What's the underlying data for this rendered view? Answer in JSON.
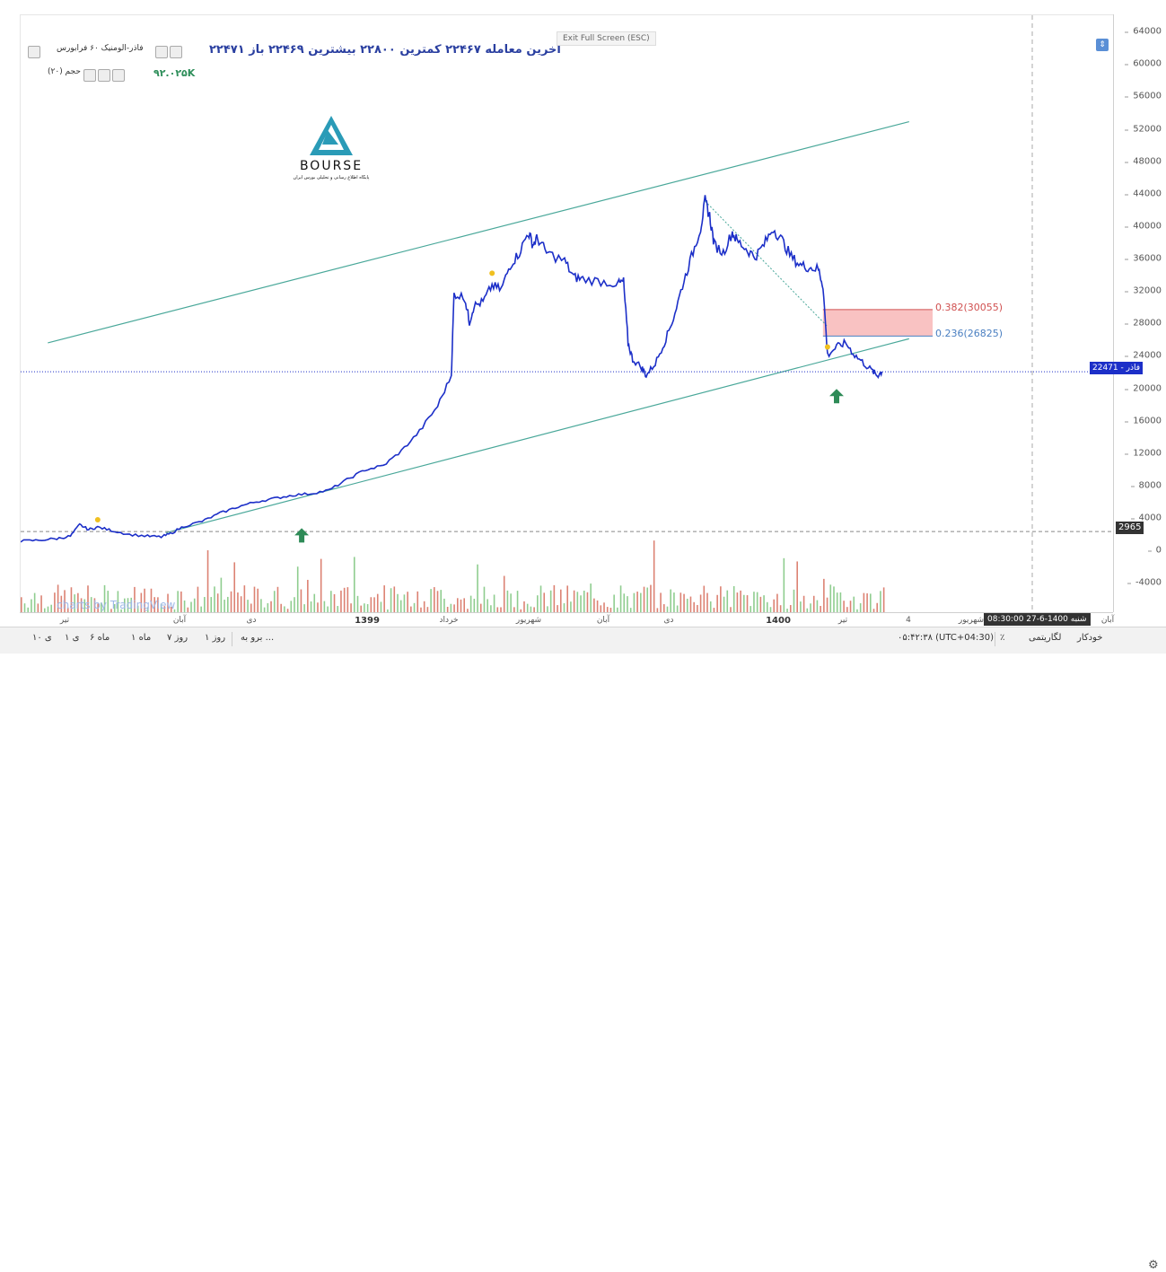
{
  "legend": {
    "title": "فاذر-الومنیک ۶۰ فرابورس",
    "ohlc_text": "۲۲۴۷۱ آخرین معامله ۲۲۴۶۷ کمترین ۲۲۸۰۰ بیشترین ۲۲۴۶۹ باز",
    "volume_label": "حجم (۲۰)",
    "volume_value": "۹۲.۰۲۵K"
  },
  "exit_fullscreen": "Exit Full Screen (ESC)",
  "logo": {
    "text": "BOURSE",
    "subtitle": "پایگاه اطلاع رسانی و تحلیلی بورس ایران"
  },
  "watermark": "charts by TradingView",
  "price_axis": {
    "ticks": [
      "64000",
      "60000",
      "56000",
      "52000",
      "48000",
      "44000",
      "40000",
      "36000",
      "32000",
      "28000",
      "24000",
      "20000",
      "16000",
      "12000",
      "8000",
      "4000",
      "0",
      "-4000"
    ],
    "current_price_badge": "22471 - فاذر",
    "hline_badge": "2965"
  },
  "fib_levels": [
    {
      "label": "0.382(30055)",
      "color": "#d05050"
    },
    {
      "label": "0.236(26825)",
      "color": "#4a7fc1"
    }
  ],
  "time_axis": {
    "labels": [
      "تیر",
      "آبان",
      "دی",
      "1399",
      "خرداد",
      "شهریور",
      "آبان",
      "دی",
      "1400",
      "تیر",
      "4",
      "شهریور",
      "آبان"
    ],
    "crosshair_time": "شنبه 1400-6-27 08:30:00"
  },
  "toolbar": {
    "ranges": [
      "۱۰ ی",
      "۱ ی",
      "۶ ماه",
      "۱ ماه",
      "۷ روز",
      "۱ روز",
      "برو به ..."
    ],
    "utc": "۰۵:۴۲:۳۸ (UTC+04:30)",
    "percent": "٪",
    "log": "لگاریتمی",
    "auto": "خودکار"
  },
  "chart_data": {
    "type": "line",
    "series": [
      {
        "name": "فاذر",
        "points": [
          [
            0,
            1800
          ],
          [
            0.02,
            1900
          ],
          [
            0.04,
            2100
          ],
          [
            0.055,
            2400
          ],
          [
            0.065,
            3800
          ],
          [
            0.075,
            3200
          ],
          [
            0.085,
            3500
          ],
          [
            0.1,
            3100
          ],
          [
            0.12,
            2600
          ],
          [
            0.14,
            2400
          ],
          [
            0.155,
            2300
          ],
          [
            0.165,
            2700
          ],
          [
            0.18,
            3600
          ],
          [
            0.2,
            4200
          ],
          [
            0.22,
            5200
          ],
          [
            0.24,
            6000
          ],
          [
            0.26,
            6600
          ],
          [
            0.28,
            7000
          ],
          [
            0.3,
            7400
          ],
          [
            0.32,
            7600
          ],
          [
            0.34,
            8000
          ],
          [
            0.36,
            9300
          ],
          [
            0.38,
            10500
          ],
          [
            0.4,
            11000
          ],
          [
            0.42,
            12800
          ],
          [
            0.44,
            15200
          ],
          [
            0.46,
            18300
          ],
          [
            0.475,
            22000
          ],
          [
            0.478,
            32000
          ],
          [
            0.49,
            31500
          ],
          [
            0.495,
            28500
          ],
          [
            0.5,
            30500
          ],
          [
            0.51,
            31000
          ],
          [
            0.52,
            33000
          ],
          [
            0.53,
            32500
          ],
          [
            0.54,
            35500
          ],
          [
            0.55,
            37000
          ],
          [
            0.56,
            39500
          ],
          [
            0.565,
            38000
          ],
          [
            0.57,
            38800
          ],
          [
            0.58,
            37000
          ],
          [
            0.6,
            36000
          ],
          [
            0.61,
            34000
          ],
          [
            0.62,
            33800
          ],
          [
            0.64,
            33500
          ],
          [
            0.66,
            33200
          ],
          [
            0.665,
            33500
          ],
          [
            0.67,
            26000
          ],
          [
            0.675,
            24000
          ],
          [
            0.685,
            23000
          ],
          [
            0.69,
            22000
          ],
          [
            0.7,
            23500
          ],
          [
            0.71,
            26000
          ],
          [
            0.72,
            29000
          ],
          [
            0.73,
            33000
          ],
          [
            0.74,
            36500
          ],
          [
            0.75,
            40000
          ],
          [
            0.755,
            43300
          ],
          [
            0.76,
            41500
          ],
          [
            0.765,
            38000
          ],
          [
            0.775,
            37000
          ],
          [
            0.785,
            39500
          ],
          [
            0.79,
            38500
          ],
          [
            0.8,
            37500
          ],
          [
            0.81,
            36500
          ],
          [
            0.82,
            38000
          ],
          [
            0.83,
            40000
          ],
          [
            0.84,
            38500
          ],
          [
            0.85,
            36500
          ],
          [
            0.86,
            35500
          ],
          [
            0.87,
            35200
          ],
          [
            0.88,
            35000
          ],
          [
            0.885,
            33000
          ],
          [
            0.89,
            24500
          ],
          [
            0.9,
            25500
          ],
          [
            0.91,
            26000
          ],
          [
            0.92,
            24500
          ],
          [
            0.93,
            23500
          ],
          [
            0.94,
            22500
          ],
          [
            0.945,
            22000
          ],
          [
            0.95,
            22471
          ]
        ]
      }
    ],
    "markers": [
      {
        "x": 0.085,
        "y": 4400
      },
      {
        "x": 0.52,
        "y": 34500
      },
      {
        "x": 0.89,
        "y": 25500
      }
    ],
    "channel_upper": [
      [
        0.03,
        26000
      ],
      [
        0.98,
        53000
      ]
    ],
    "channel_lower": [
      [
        0.16,
        2800
      ],
      [
        0.98,
        26500
      ]
    ],
    "fib_box": [
      {
        "y": 30055
      },
      {
        "y": 26825
      }
    ],
    "current_price": 22471,
    "hline": 2965,
    "arrows": [
      {
        "x": 0.31,
        "y": 2500
      },
      {
        "x": 0.9,
        "y": 19500
      }
    ],
    "volume_overlay": true,
    "ylim": [
      -7000,
      66000
    ]
  }
}
